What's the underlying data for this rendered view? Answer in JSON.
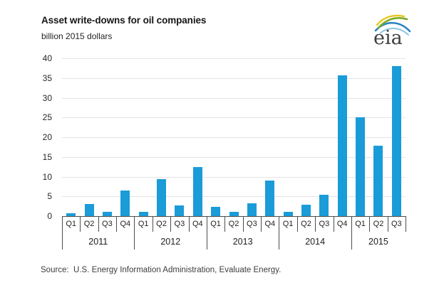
{
  "header": {
    "title": "Asset write-downs for oil companies",
    "subtitle": "billion 2015 dollars"
  },
  "logo": {
    "text": "eia"
  },
  "chart_data": {
    "type": "bar",
    "title": "Asset write-downs for oil companies",
    "ylabel": "billion 2015 dollars",
    "xlabel": "",
    "ylim": [
      0,
      40
    ],
    "ytick_step": 5,
    "grid": true,
    "legend": "none",
    "bar_color": "#1a9cd8",
    "categories": [
      "Q1",
      "Q2",
      "Q3",
      "Q4",
      "Q1",
      "Q2",
      "Q3",
      "Q4",
      "Q1",
      "Q2",
      "Q3",
      "Q4",
      "Q1",
      "Q2",
      "Q3",
      "Q4",
      "Q1",
      "Q2",
      "Q3"
    ],
    "years": [
      {
        "label": "2011",
        "quarters": 4
      },
      {
        "label": "2012",
        "quarters": 4
      },
      {
        "label": "2013",
        "quarters": 4
      },
      {
        "label": "2014",
        "quarters": 4
      },
      {
        "label": "2015",
        "quarters": 3
      }
    ],
    "values": [
      0.7,
      3.0,
      1.0,
      6.5,
      1.1,
      9.3,
      2.7,
      12.4,
      2.4,
      1.1,
      3.3,
      9.0,
      1.0,
      2.8,
      5.4,
      35.6,
      25.1,
      17.9,
      38.0
    ]
  },
  "footer": {
    "source": "Source:  U.S. Energy Information Administration, Evaluate Energy."
  },
  "colors": {
    "bar": "#1a9cd8",
    "grid": "#e4e4e4",
    "axis": "#4d4d4d",
    "logo_yellow": "#e9c51d",
    "logo_green": "#7dab27",
    "logo_blue": "#2a85c0",
    "logo_lightblue": "#8ec7e4"
  }
}
